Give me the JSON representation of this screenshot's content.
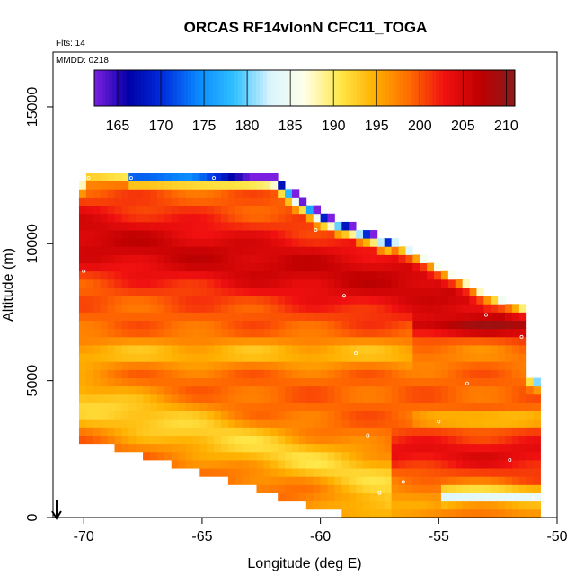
{
  "chart_data": {
    "type": "heatmap",
    "title": "ORCAS RF14vlonN CFC11_TOGA",
    "flights_label": "Flts: 14",
    "date_label": "MMDD: 0218",
    "xlabel": "Longitude (deg E)",
    "ylabel": "Altitude (m)",
    "xlim": [
      -71.3,
      -50
    ],
    "ylim": [
      0,
      17000
    ],
    "x_ticks": [
      -70,
      -65,
      -60,
      -55,
      -50
    ],
    "x_tick_labels": [
      "-70",
      "-65",
      "-60",
      "-55",
      "-50"
    ],
    "y_ticks": [
      0,
      5000,
      10000,
      15000
    ],
    "y_tick_labels": [
      "0",
      "5000",
      "10000",
      "15000"
    ],
    "colorbar": {
      "min": 162.3,
      "max": 211,
      "ticks": [
        165,
        170,
        175,
        180,
        185,
        190,
        195,
        200,
        205,
        210
      ],
      "tick_labels": [
        "165",
        "170",
        "175",
        "180",
        "185",
        "190",
        "195",
        "200",
        "205",
        "210"
      ],
      "colors": [
        "#7b1fe0",
        "#0000a8",
        "#0030e0",
        "#0a8cff",
        "#30c0ff",
        "#d8f4ff",
        "#ffffe8",
        "#ffe84a",
        "#ffb000",
        "#ff6a00",
        "#f01010",
        "#c00000",
        "#8a1a1a"
      ]
    },
    "domain": {
      "lon_min": -70.2,
      "lon_max": -50.8,
      "alt_min": 0,
      "top_altitude_profile": [
        [
          -70.2,
          11000
        ],
        [
          -70.0,
          12500
        ],
        [
          -65.5,
          12500
        ],
        [
          -62.0,
          12400
        ],
        [
          -60.0,
          11000
        ],
        [
          -57.0,
          10000
        ],
        [
          -55.0,
          9000
        ],
        [
          -53.0,
          8000
        ],
        [
          -51.3,
          7500
        ],
        [
          -51.3,
          5100
        ],
        [
          -50.8,
          4800
        ],
        [
          -50.8,
          0
        ]
      ],
      "bottom_altitude_profile": [
        [
          -70.2,
          3000
        ],
        [
          -69.0,
          2800
        ],
        [
          -67.0,
          2300
        ],
        [
          -65.0,
          1800
        ],
        [
          -63.0,
          1300
        ],
        [
          -61.0,
          700
        ],
        [
          -59.0,
          300
        ],
        [
          -57.5,
          0
        ],
        [
          -50.8,
          0
        ]
      ]
    },
    "field_features": [
      {
        "name": "upper high band",
        "lon": [
          -70,
          -52
        ],
        "alt_center": [
          10000,
          8000
        ],
        "value": 206
      },
      {
        "name": "mid yellow layer",
        "lon": [
          -70,
          -56
        ],
        "alt_center": [
          6200,
          5800
        ],
        "value": 195
      },
      {
        "name": "lower yellow band",
        "lon": [
          -70,
          -58
        ],
        "alt_center": [
          4200,
          1500
        ],
        "value": 193
      },
      {
        "name": "dark red layer east",
        "lon": [
          -56,
          -51.3
        ],
        "alt_center": [
          7000,
          7000
        ],
        "value": 209
      },
      {
        "name": "near-surface light band",
        "lon": [
          -55,
          -51
        ],
        "alt_center": [
          800,
          800
        ],
        "value": 188
      },
      {
        "name": "lower cold cells at top",
        "lon": [
          -67,
          -58
        ],
        "alt_center": [
          12500,
          10000
        ],
        "value": 172
      }
    ],
    "flight_track_points": [
      [
        -69.8,
        12400
      ],
      [
        -68.0,
        12400
      ],
      [
        -64.5,
        12400
      ],
      [
        -61.5,
        12400
      ],
      [
        -60.2,
        10500
      ],
      [
        -59.0,
        8100
      ],
      [
        -58.5,
        6000
      ],
      [
        -58.0,
        3000
      ],
      [
        -57.5,
        900
      ],
      [
        -56.5,
        1300
      ],
      [
        -55.0,
        3500
      ],
      [
        -53.8,
        4900
      ],
      [
        -53.0,
        7400
      ],
      [
        -51.5,
        6600
      ],
      [
        -52.0,
        2100
      ],
      [
        -51.0,
        700
      ],
      [
        -70.3,
        4800
      ],
      [
        -70.0,
        9000
      ]
    ],
    "wind_arrow_label": ""
  }
}
